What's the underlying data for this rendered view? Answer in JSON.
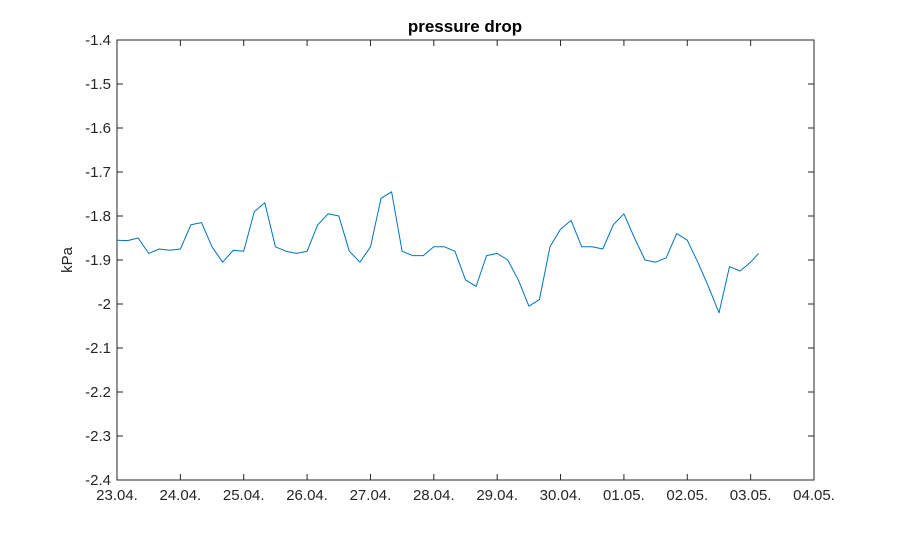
{
  "chart_data": {
    "type": "line",
    "title": "pressure drop",
    "xlabel": "",
    "ylabel": "kPa",
    "xlim": [
      "2024-04-23",
      "2024-05-04"
    ],
    "ylim": [
      -2.4,
      -1.4
    ],
    "x_ticks": [
      "23.04.",
      "24.04.",
      "25.04.",
      "26.04.",
      "27.04.",
      "28.04.",
      "29.04.",
      "30.04.",
      "01.05.",
      "02.05.",
      "03.05.",
      "04.05."
    ],
    "y_ticks": [
      "-1.4",
      "-1.5",
      "-1.6",
      "-1.7",
      "-1.8",
      "-1.9",
      "-2",
      "-2.1",
      "-2.2",
      "-2.3",
      "-2.4"
    ],
    "grid": false,
    "colors": {
      "series": "#0072BD",
      "axis": "#262626"
    },
    "series": [
      {
        "x": [
          "2024-04-23 00:00",
          "2024-04-23 04:00",
          "2024-04-23 08:00",
          "2024-04-23 12:00",
          "2024-04-23 16:00",
          "2024-04-23 20:00",
          "2024-04-24 00:00",
          "2024-04-24 04:00",
          "2024-04-24 08:00",
          "2024-04-24 12:00",
          "2024-04-24 16:00",
          "2024-04-24 20:00",
          "2024-04-25 00:00",
          "2024-04-25 04:00",
          "2024-04-25 08:00",
          "2024-04-25 12:00",
          "2024-04-25 16:00",
          "2024-04-25 20:00",
          "2024-04-26 00:00",
          "2024-04-26 04:00",
          "2024-04-26 08:00",
          "2024-04-26 12:00",
          "2024-04-26 16:00",
          "2024-04-26 20:00",
          "2024-04-27 00:00",
          "2024-04-27 04:00",
          "2024-04-27 08:00",
          "2024-04-27 12:00",
          "2024-04-27 16:00",
          "2024-04-27 20:00",
          "2024-04-28 00:00",
          "2024-04-28 04:00",
          "2024-04-28 08:00",
          "2024-04-28 12:00",
          "2024-04-28 16:00",
          "2024-04-28 20:00",
          "2024-04-29 00:00",
          "2024-04-29 04:00",
          "2024-04-29 08:00",
          "2024-04-29 12:00",
          "2024-04-29 16:00",
          "2024-04-29 20:00",
          "2024-04-30 00:00",
          "2024-04-30 04:00",
          "2024-04-30 08:00",
          "2024-04-30 12:00",
          "2024-04-30 16:00",
          "2024-04-30 20:00",
          "2024-05-01 00:00",
          "2024-05-01 04:00",
          "2024-05-01 08:00",
          "2024-05-01 12:00",
          "2024-05-01 16:00",
          "2024-05-01 20:00",
          "2024-05-02 00:00",
          "2024-05-02 04:00",
          "2024-05-02 08:00",
          "2024-05-02 12:00",
          "2024-05-02 16:00",
          "2024-05-02 20:00",
          "2024-05-03 00:00",
          "2024-05-03 03:00"
        ],
        "values": [
          -1.855,
          -1.856,
          -1.85,
          -1.885,
          -1.875,
          -1.878,
          -1.875,
          -1.82,
          -1.815,
          -1.87,
          -1.905,
          -1.878,
          -1.88,
          -1.79,
          -1.77,
          -1.87,
          -1.88,
          -1.885,
          -1.88,
          -1.82,
          -1.795,
          -1.8,
          -1.88,
          -1.905,
          -1.87,
          -1.76,
          -1.745,
          -1.88,
          -1.89,
          -1.89,
          -1.87,
          -1.87,
          -1.88,
          -1.945,
          -1.96,
          -1.89,
          -1.885,
          -1.9,
          -1.945,
          -2.005,
          -1.99,
          -1.87,
          -1.83,
          -1.81,
          -1.87,
          -1.87,
          -1.875,
          -1.82,
          -1.795,
          -1.85,
          -1.9,
          -1.905,
          -1.895,
          -1.84,
          -1.855,
          -1.905,
          -1.96,
          -2.02,
          -1.915,
          -1.925,
          -1.905,
          -1.885
        ]
      }
    ]
  }
}
